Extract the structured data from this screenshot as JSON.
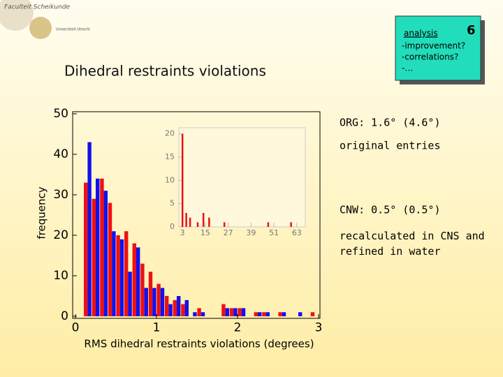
{
  "slide": {
    "logo_top": "Faculteit Scheikunde",
    "logo_bottom": "Universiteit Utrecht",
    "title": "Dihedral restraints violations",
    "box": {
      "heading": "analysis",
      "number": "6",
      "lines": [
        "-improvement?",
        "-correlations?",
        "-…"
      ]
    },
    "notes": [
      "ORG: 1.6° (4.6°)",
      "original entries",
      "CNW: 0.5° (0.5°)",
      "recalculated in CNS and refined in water"
    ]
  },
  "chart_data": [
    {
      "type": "bar",
      "x_label": "RMS dihedral restraints violations (degrees)",
      "y_label": "frequency",
      "x": [
        0.15,
        0.25,
        0.35,
        0.45,
        0.55,
        0.65,
        0.75,
        0.85,
        0.95,
        1.05,
        1.15,
        1.25,
        1.35,
        1.45,
        1.55,
        1.85,
        1.95,
        2.05,
        2.25,
        2.35,
        2.55,
        2.75,
        2.95
      ],
      "series": [
        {
          "color": "#ee1111",
          "values": [
            33,
            29,
            34,
            28,
            20,
            21,
            18,
            13,
            11,
            8,
            5,
            4,
            3,
            0,
            2,
            3,
            2,
            2,
            1,
            1,
            1,
            0,
            1
          ]
        },
        {
          "color": "#1111ee",
          "values": [
            43,
            34,
            31,
            21,
            19,
            11,
            17,
            7,
            7,
            7,
            3,
            5,
            4,
            1,
            1,
            2,
            2,
            2,
            1,
            1,
            1,
            1,
            0
          ]
        }
      ],
      "xlim": [
        0,
        3
      ],
      "xticks": [
        0,
        1,
        2,
        3
      ],
      "ylim": [
        0,
        50
      ],
      "yticks": [
        0,
        10,
        20,
        30,
        40,
        50
      ]
    },
    {
      "type": "bar",
      "x": [
        3,
        5,
        7,
        11,
        14,
        17,
        25,
        48,
        60
      ],
      "series": [
        {
          "color": "#ee1111",
          "values": [
            20,
            3,
            2,
            1,
            3,
            2,
            1,
            1,
            1
          ]
        }
      ],
      "xlim": [
        0,
        66
      ],
      "xticks": [
        3,
        15,
        27,
        39,
        51,
        63
      ],
      "ylim": [
        0,
        21
      ],
      "yticks": [
        0,
        5,
        10,
        15,
        20
      ]
    }
  ]
}
